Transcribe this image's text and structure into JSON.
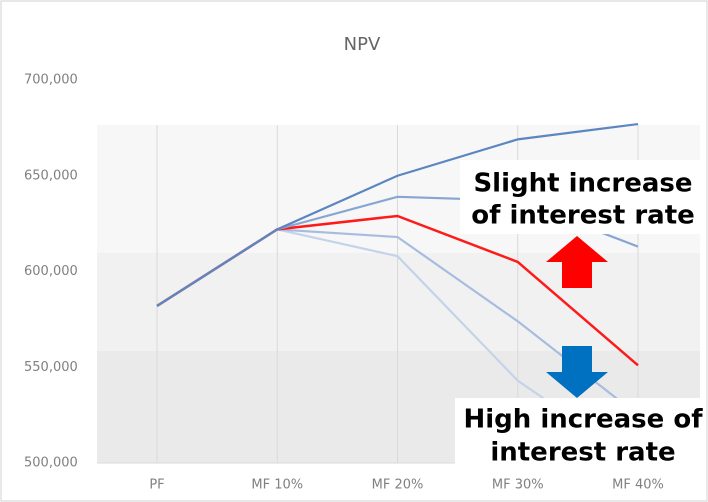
{
  "chart_data": {
    "type": "line",
    "title": "NPV",
    "categories": [
      "PF",
      "MF 10%",
      "MF 20%",
      "MF 30%",
      "MF 40%"
    ],
    "series": [
      {
        "color": "#5b86c0",
        "values": [
          582000,
          622000,
          650000,
          669000,
          677000
        ]
      },
      {
        "color": "#88a6d2",
        "values": [
          582000,
          622000,
          639000,
          637000,
          613000
        ]
      },
      {
        "color": "#ff1a1a",
        "values": [
          582000,
          622000,
          629000,
          605000,
          551000
        ]
      },
      {
        "color": "#a7bcdf",
        "values": [
          582000,
          622000,
          618000,
          574000,
          525000
        ]
      },
      {
        "color": "#c5d3ea",
        "values": [
          582000,
          622000,
          608000,
          543000,
          500000
        ]
      }
    ],
    "ylim": [
      500000,
      700000
    ],
    "yticks": [
      {
        "value": 500000,
        "label": "500,000"
      },
      {
        "value": 550000,
        "label": "550,000"
      },
      {
        "value": 600000,
        "label": "600,000"
      },
      {
        "value": 650000,
        "label": "650,000"
      },
      {
        "value": 700000,
        "label": "700,000"
      }
    ],
    "annotations": [
      {
        "lines": [
          "Slight increase",
          "of interest rate"
        ]
      },
      {
        "lines": [
          "High increase of",
          "interest rate"
        ]
      }
    ]
  }
}
